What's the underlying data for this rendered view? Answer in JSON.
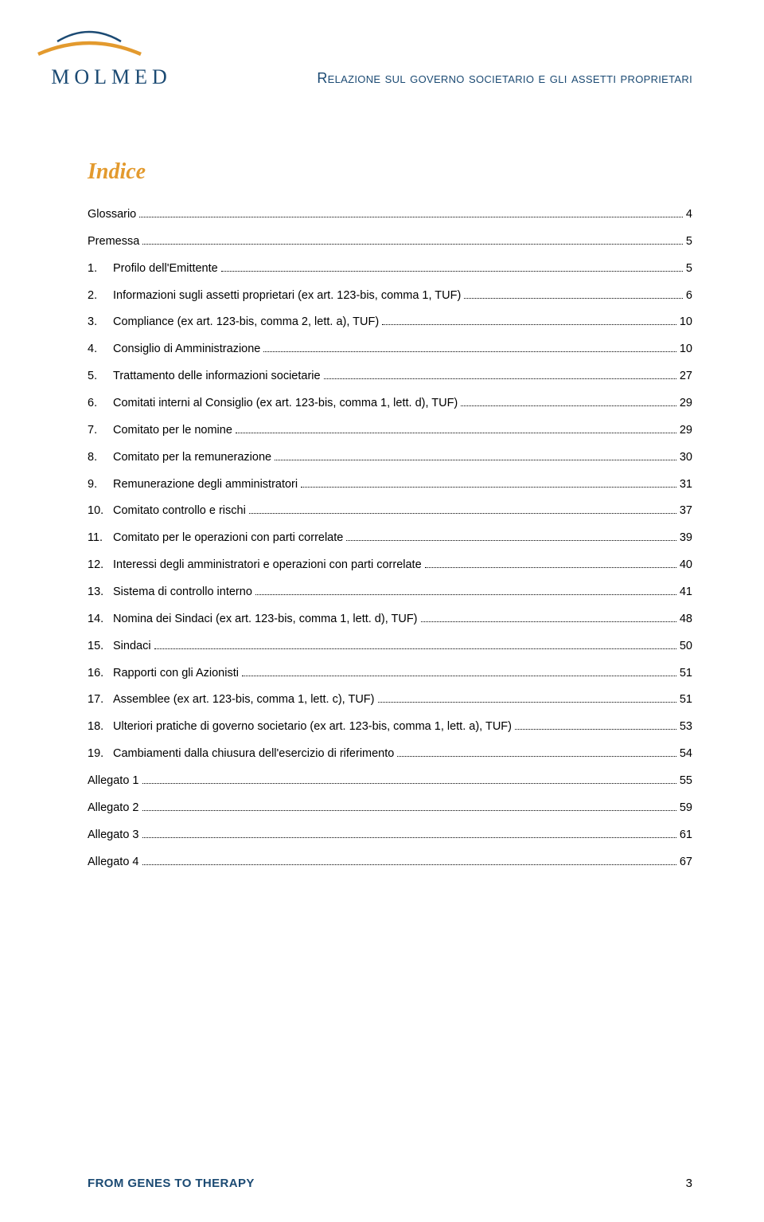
{
  "colors": {
    "brand_blue": "#1b4a73",
    "accent_orange": "#e39a2e",
    "text_black": "#000000",
    "page_bg": "#ffffff",
    "leader_dot": "#000000"
  },
  "typography": {
    "body_font": "Arial, Helvetica, sans-serif",
    "heading_font": "Georgia, 'Times New Roman', serif",
    "logo_font": "Georgia, 'Times New Roman', serif",
    "body_size_pt": 11,
    "heading_size_pt": 21,
    "logo_size_pt": 20
  },
  "logo": {
    "text": "MOLMED",
    "arc_color_top": "#1b4a73",
    "arc_color_bottom": "#e39a2e"
  },
  "header": {
    "title": "Relazione sul governo societario e gli assetti proprietari"
  },
  "indice": {
    "heading": "Indice",
    "entries": [
      {
        "num": "",
        "label": "Glossario",
        "page": "4"
      },
      {
        "num": "",
        "label": "Premessa",
        "page": "5"
      },
      {
        "num": "1.",
        "label": "Profilo dell'Emittente",
        "page": "5"
      },
      {
        "num": "2.",
        "label": "Informazioni sugli assetti proprietari (ex art. 123-bis, comma 1,  TUF)",
        "page": "6"
      },
      {
        "num": "3.",
        "label": "Compliance (ex art. 123-bis, comma 2, lett. a),  TUF)",
        "page": "10"
      },
      {
        "num": "4.",
        "label": "Consiglio di Amministrazione",
        "page": "10"
      },
      {
        "num": "5.",
        "label": "Trattamento delle informazioni societarie",
        "page": "27"
      },
      {
        "num": "6.",
        "label": "Comitati interni al Consiglio (ex art. 123-bis, comma 1, lett. d),  TUF)",
        "page": "29"
      },
      {
        "num": "7.",
        "label": "Comitato per le nomine",
        "page": "29"
      },
      {
        "num": "8.",
        "label": "Comitato per la remunerazione",
        "page": "30"
      },
      {
        "num": "9.",
        "label": "Remunerazione degli amministratori",
        "page": "31"
      },
      {
        "num": "10.",
        "label": "Comitato controllo e rischi",
        "page": "37"
      },
      {
        "num": "11.",
        "label": "Comitato per le operazioni con parti correlate",
        "page": "39"
      },
      {
        "num": "12.",
        "label": "Interessi degli amministratori e operazioni con parti correlate",
        "page": "40"
      },
      {
        "num": "13.",
        "label": "Sistema di controllo interno",
        "page": "41"
      },
      {
        "num": "14.",
        "label": "Nomina dei Sindaci (ex art. 123-bis, comma 1, lett. d),  TUF)",
        "page": "48"
      },
      {
        "num": "15.",
        "label": "Sindaci",
        "page": "50"
      },
      {
        "num": "16.",
        "label": "Rapporti con gli Azionisti",
        "page": "51"
      },
      {
        "num": "17.",
        "label": "Assemblee (ex art. 123-bis, comma 1, lett. c),  TUF)",
        "page": "51"
      },
      {
        "num": "18.",
        "label": "Ulteriori pratiche di governo societario (ex art. 123-bis, comma 1, lett. a),  TUF)",
        "page": "53"
      },
      {
        "num": "19.",
        "label": "Cambiamenti dalla chiusura dell'esercizio di riferimento",
        "page": "54"
      },
      {
        "num": "",
        "label": "Allegato 1",
        "page": "55"
      },
      {
        "num": "",
        "label": "Allegato 2",
        "page": "59"
      },
      {
        "num": "",
        "label": "Allegato 3",
        "page": "61"
      },
      {
        "num": "",
        "label": "Allegato 4",
        "page": "67"
      }
    ]
  },
  "footer": {
    "tagline": "FROM GENES TO THERAPY",
    "page_number": "3"
  }
}
